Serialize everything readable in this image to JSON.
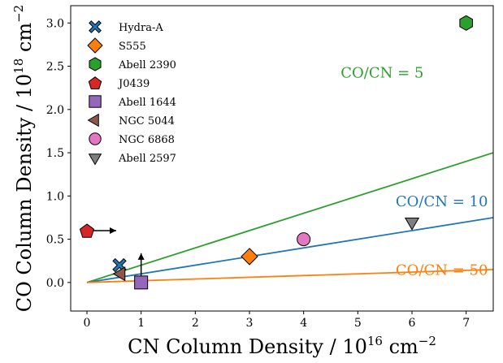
{
  "chart_data": {
    "type": "scatter",
    "xlabel": "CN Column Density / 10",
    "xlabel_exp": "16",
    "xlabel_unit": " cm",
    "xlabel_unit_exp": "−2",
    "ylabel": "CO Column Density / 10",
    "ylabel_exp": "18",
    "ylabel_unit": " cm",
    "ylabel_unit_exp": "−2",
    "xlim": [
      -0.3,
      7.5
    ],
    "ylim": [
      -0.33,
      3.2
    ],
    "xticks": [
      0,
      1,
      2,
      3,
      4,
      5,
      6,
      7
    ],
    "xtick_labels": [
      "0",
      "1",
      "2",
      "3",
      "4",
      "5",
      "6",
      "7"
    ],
    "yticks": [
      0.0,
      0.5,
      1.0,
      1.5,
      2.0,
      2.5,
      3.0
    ],
    "ytick_labels": [
      "0.0",
      "0.5",
      "1.0",
      "1.5",
      "2.0",
      "2.5",
      "3.0"
    ],
    "grid": false,
    "legend_position": "top-left",
    "series": [
      {
        "name": "Hydra-A",
        "marker": "x-thick",
        "color": "#1f77b4",
        "x": 0.6,
        "y": 0.2
      },
      {
        "name": "S555",
        "marker": "diamond",
        "color": "#ff7f0e",
        "x": 3.0,
        "y": 0.3
      },
      {
        "name": "Abell 2390",
        "marker": "hexagon",
        "color": "#2ca02c",
        "x": 7.0,
        "y": 3.0
      },
      {
        "name": "J0439",
        "marker": "pentagon",
        "color": "#d62728",
        "x": 0.0,
        "y": 0.6,
        "limit": "lower-x"
      },
      {
        "name": "Abell 1644",
        "marker": "square",
        "color": "#9467bd",
        "x": 1.0,
        "y": 0.0,
        "limit": "lower-y"
      },
      {
        "name": "NGC 5044",
        "marker": "triangle-left",
        "color": "#8c564b",
        "x": 0.63,
        "y": 0.1
      },
      {
        "name": "NGC 6868",
        "marker": "circle",
        "color": "#e377c2",
        "x": 4.0,
        "y": 0.5
      },
      {
        "name": "Abell 2597",
        "marker": "triangle-down",
        "color": "#7f7f7f",
        "x": 6.0,
        "y": 0.7
      }
    ],
    "lines": [
      {
        "label": "CO/CN = 5",
        "ratio": 5,
        "color": "#2ca02c"
      },
      {
        "label": "CO/CN = 10",
        "ratio": 10,
        "color": "#1f77b4"
      },
      {
        "label": "CO/CN = 50",
        "ratio": 50,
        "color": "#ff7f0e"
      }
    ]
  }
}
